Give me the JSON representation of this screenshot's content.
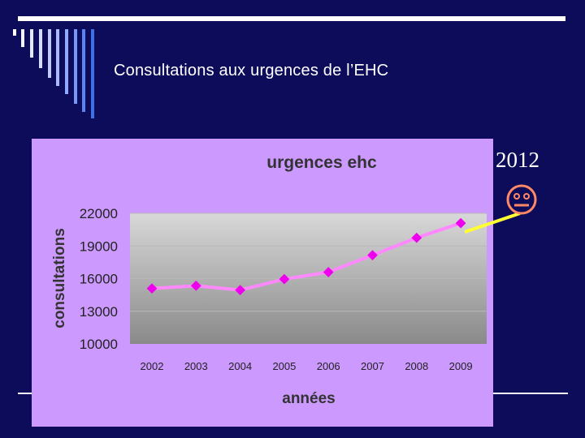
{
  "slide": {
    "title": "Consultations aux urgences de l’EHC",
    "annotation": "2012",
    "annotation_icon": "smiley-face-icon"
  },
  "colors": {
    "background": "#0c0c5a",
    "chart_panel": "#cc99ff",
    "line": "#ff88ff",
    "marker": "#ee00ee",
    "callout_line": "#ffff33",
    "smiley": "#ff8866",
    "annotation_text": "#ffffff"
  },
  "chart_data": {
    "type": "line",
    "title": "urgences ehc",
    "xlabel": "années",
    "ylabel": "consultations",
    "categories": [
      "2002",
      "2003",
      "2004",
      "2005",
      "2006",
      "2007",
      "2008",
      "2009"
    ],
    "series": [
      {
        "values": [
          15100,
          15350,
          14950,
          15950,
          16600,
          18150,
          19750,
          21100
        ]
      }
    ],
    "ylim": [
      10000,
      22000
    ],
    "yticks": [
      10000,
      13000,
      16000,
      19000,
      22000
    ],
    "ytick_labels": [
      "10000",
      "13000",
      "16000",
      "19000",
      "22000"
    ],
    "grid": true,
    "legend": "none"
  }
}
